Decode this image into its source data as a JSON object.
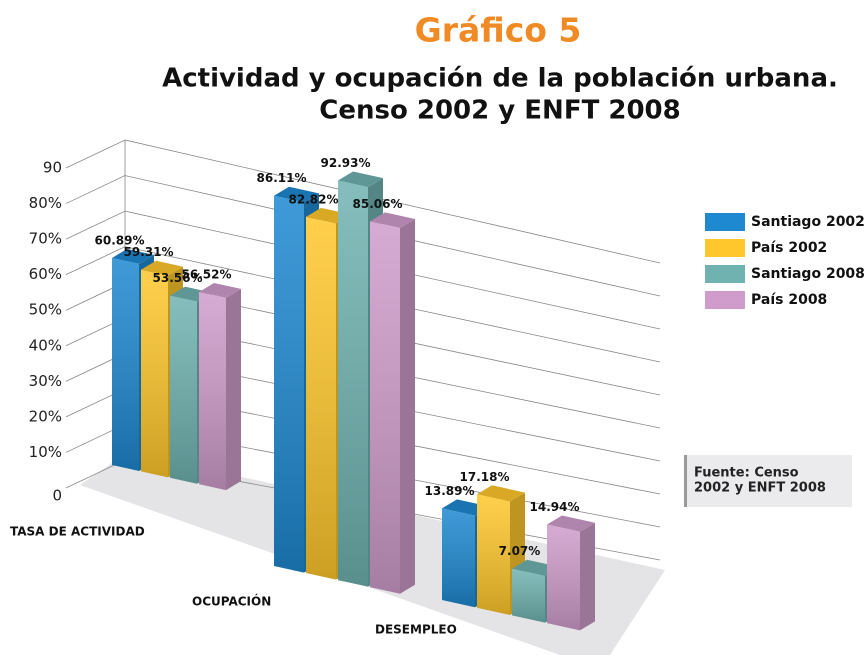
{
  "chart_data": {
    "type": "bar3d",
    "title": "Gráfico 5",
    "subtitle": [
      "Actividad y ocupación de la población urbana.",
      "Censo 2002 y ENFT 2008"
    ],
    "categories": [
      "TASA DE ACTIVIDAD",
      "OCUPACIÓN",
      "DESEMPLEO"
    ],
    "series": [
      {
        "name": "Santiago 2002",
        "color": "#1e88d0",
        "values": [
          60.89,
          86.11,
          13.89
        ],
        "value_labels": [
          "60.89%",
          "86.11%",
          "13.89%"
        ]
      },
      {
        "name": "País 2002",
        "color": "#ffc72c",
        "values": [
          59.31,
          82.82,
          17.18
        ],
        "value_labels": [
          "59.31%",
          "82.82%",
          "17.18%"
        ]
      },
      {
        "name": "Santiago 2008",
        "color": "#6fb2b0",
        "values": [
          53.56,
          92.93,
          7.07
        ],
        "value_labels": [
          "53.56%",
          "92.93%",
          "7.07%"
        ]
      },
      {
        "name": "País 2008",
        "color": "#cf9ccb",
        "values": [
          56.52,
          85.06,
          14.94
        ],
        "value_labels": [
          "56.52%",
          "85.06%",
          "14.94%"
        ]
      }
    ],
    "ylim": [
      0,
      90
    ],
    "yticks": [
      0,
      {
        "value": 10,
        "label": "10%"
      },
      {
        "value": 20,
        "label": "20%"
      },
      {
        "value": 30,
        "label": "30%"
      },
      {
        "value": 40,
        "label": "40%"
      },
      {
        "value": 50,
        "label": "50%"
      },
      {
        "value": 60,
        "label": "60%"
      },
      {
        "value": 70,
        "label": "70%"
      },
      {
        "value": 80,
        "label": "80%"
      },
      90
    ],
    "grid": true,
    "legend": "right",
    "source": [
      "Fuente: Censo",
      "2002 y ENFT 2008"
    ]
  }
}
